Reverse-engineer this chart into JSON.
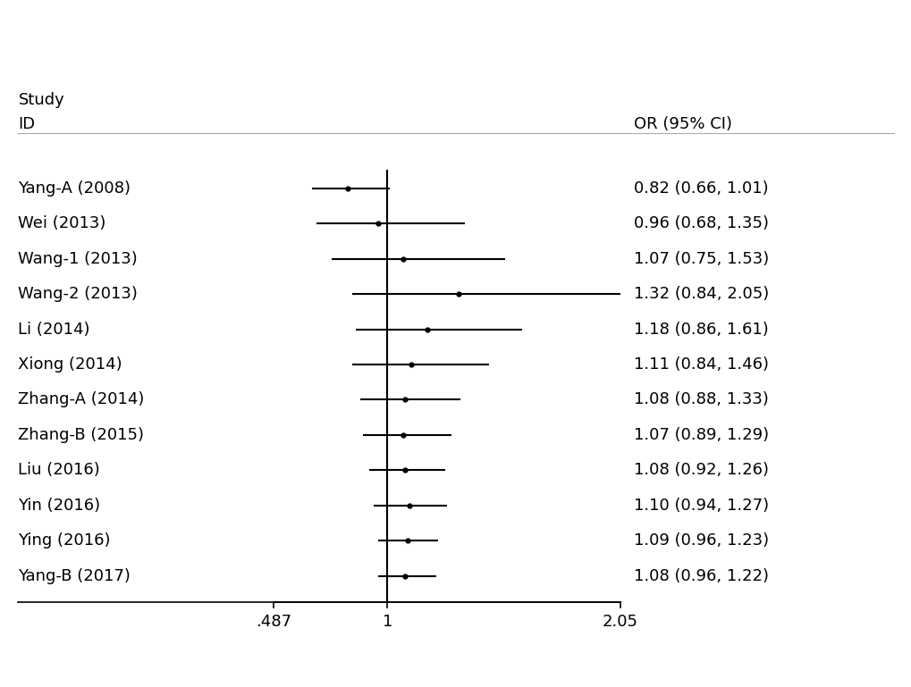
{
  "studies": [
    {
      "label": "Yang-A (2008)",
      "or": 0.82,
      "ci_low": 0.66,
      "ci_high": 1.01,
      "text": "0.82 (0.66, 1.01)",
      "arrow": false
    },
    {
      "label": "Wei (2013)",
      "or": 0.96,
      "ci_low": 0.68,
      "ci_high": 1.35,
      "text": "0.96 (0.68, 1.35)",
      "arrow": false
    },
    {
      "label": "Wang-1 (2013)",
      "or": 1.07,
      "ci_low": 0.75,
      "ci_high": 1.53,
      "text": "1.07 (0.75, 1.53)",
      "arrow": false
    },
    {
      "label": "Wang-2 (2013)",
      "or": 1.32,
      "ci_low": 0.84,
      "ci_high": 2.05,
      "text": "1.32 (0.84, 2.05)",
      "arrow": true
    },
    {
      "label": "Li (2014)",
      "or": 1.18,
      "ci_low": 0.86,
      "ci_high": 1.61,
      "text": "1.18 (0.86, 1.61)",
      "arrow": false
    },
    {
      "label": "Xiong (2014)",
      "or": 1.11,
      "ci_low": 0.84,
      "ci_high": 1.46,
      "text": "1.11 (0.84, 1.46)",
      "arrow": false
    },
    {
      "label": "Zhang-A (2014)",
      "or": 1.08,
      "ci_low": 0.88,
      "ci_high": 1.33,
      "text": "1.08 (0.88, 1.33)",
      "arrow": false
    },
    {
      "label": "Zhang-B (2015)",
      "or": 1.07,
      "ci_low": 0.89,
      "ci_high": 1.29,
      "text": "1.07 (0.89, 1.29)",
      "arrow": false
    },
    {
      "label": "Liu (2016)",
      "or": 1.08,
      "ci_low": 0.92,
      "ci_high": 1.26,
      "text": "1.08 (0.92, 1.26)",
      "arrow": false
    },
    {
      "label": "Yin (2016)",
      "or": 1.1,
      "ci_low": 0.94,
      "ci_high": 1.27,
      "text": "1.10 (0.94, 1.27)",
      "arrow": false
    },
    {
      "label": "Ying (2016)",
      "or": 1.09,
      "ci_low": 0.96,
      "ci_high": 1.23,
      "text": "1.09 (0.96, 1.23)",
      "arrow": false
    },
    {
      "label": "Yang-B (2017)",
      "or": 1.08,
      "ci_low": 0.96,
      "ci_high": 1.22,
      "text": "1.08 (0.96, 1.22)",
      "arrow": false
    }
  ],
  "x_min": 0.487,
  "x_max": 2.05,
  "x_ticks": [
    0.487,
    1.0,
    2.05
  ],
  "x_tick_labels": [
    ".487",
    "1",
    "2.05"
  ],
  "null_line": 1.0,
  "bg_color": "#ffffff",
  "line_color": "#000000",
  "text_color": "#000000",
  "header_study": "Study",
  "header_id": "ID",
  "header_or": "OR (95% CI)",
  "label_fontsize": 13,
  "or_text_fontsize": 13,
  "header_fontsize": 13
}
